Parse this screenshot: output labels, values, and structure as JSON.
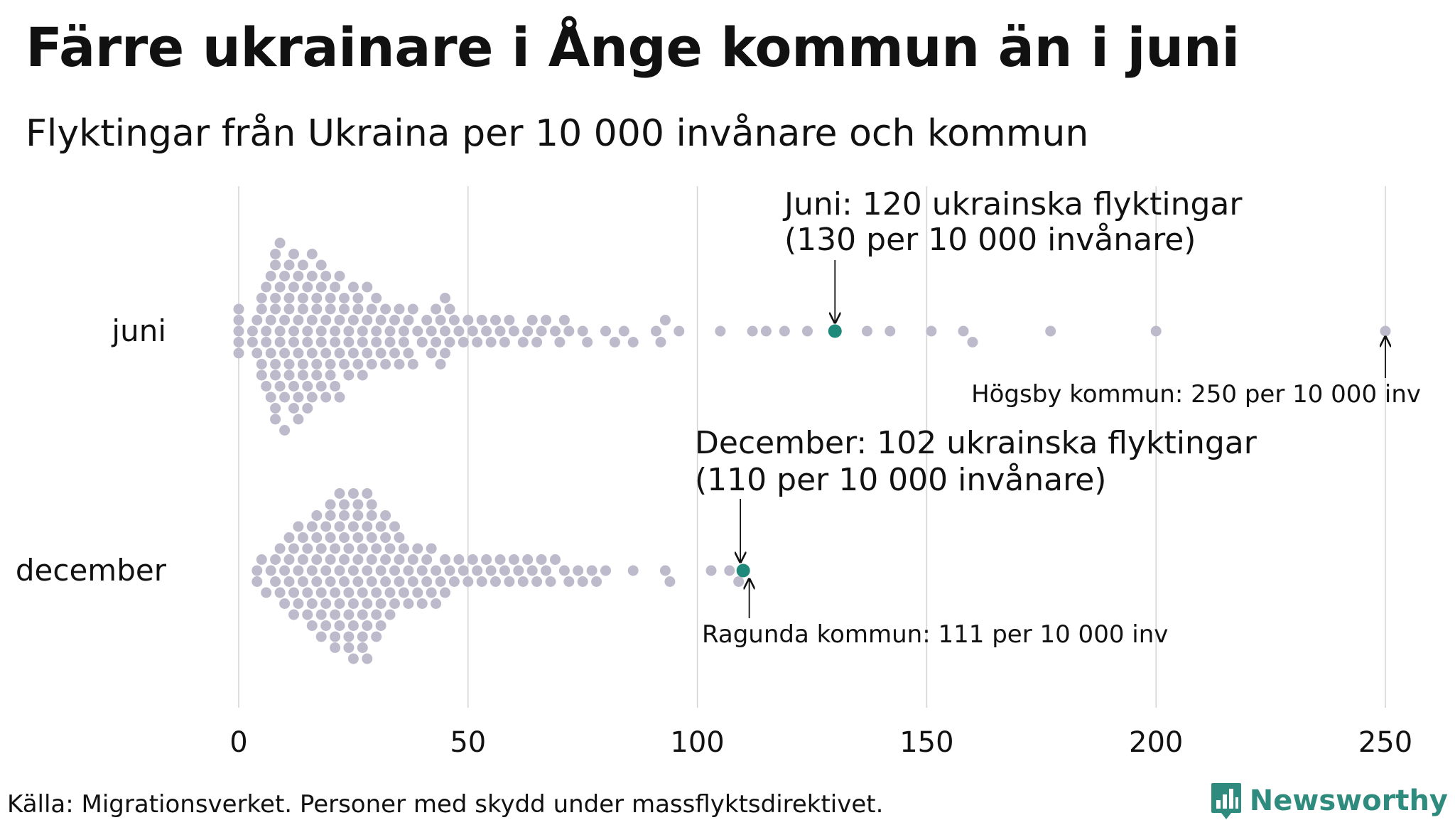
{
  "title": "Färre ukrainare i Ånge kommun än i juni",
  "subtitle": "Flyktingar från Ukraina per 10 000 invånare och kommun",
  "source": "Källa: Migrationsverket. Personer med skydd under massflyktsdirektivet.",
  "brand": {
    "name": "Newsworthy",
    "icon": "bar-chart-speech-bubble-icon",
    "color": "#2e8b7e"
  },
  "chart_data": {
    "type": "scatter",
    "subtype": "beeswarm",
    "xlim": [
      0,
      250
    ],
    "xticks": [
      0,
      50,
      100,
      150,
      200,
      250
    ],
    "grid": true,
    "categories": [
      "juni",
      "december"
    ],
    "colors": {
      "dot": "#bdbacb",
      "highlight": "#1f8a7c",
      "grid": "#d4d4d4"
    },
    "series": [
      {
        "values": [
          0,
          0,
          0,
          0,
          0,
          3,
          3,
          4,
          4,
          5,
          5,
          5,
          5,
          6,
          6,
          6,
          6,
          7,
          7,
          7,
          7,
          8,
          8,
          8,
          8,
          8,
          8,
          8,
          8,
          9,
          9,
          9,
          9,
          9,
          10,
          10,
          10,
          10,
          10,
          11,
          11,
          11,
          11,
          11,
          12,
          12,
          12,
          12,
          12,
          12,
          13,
          13,
          13,
          13,
          13,
          14,
          14,
          14,
          14,
          14,
          15,
          15,
          15,
          15,
          15,
          16,
          16,
          16,
          16,
          16,
          17,
          17,
          17,
          17,
          18,
          18,
          18,
          18,
          18,
          19,
          19,
          19,
          19,
          20,
          20,
          20,
          20,
          21,
          21,
          21,
          21,
          22,
          22,
          22,
          22,
          23,
          23,
          23,
          24,
          24,
          24,
          25,
          25,
          25,
          26,
          26,
          26,
          27,
          27,
          27,
          28,
          28,
          28,
          29,
          29,
          30,
          30,
          30,
          31,
          31,
          32,
          32,
          33,
          33,
          34,
          34,
          35,
          35,
          36,
          36,
          37,
          37,
          38,
          38,
          39,
          40,
          41,
          42,
          42,
          43,
          43,
          44,
          44,
          45,
          45,
          45,
          46,
          46,
          47,
          48,
          49,
          50,
          51,
          52,
          53,
          54,
          55,
          56,
          57,
          58,
          59,
          60,
          62,
          63,
          64,
          65,
          66,
          67,
          69,
          70,
          71,
          72,
          75,
          76,
          80,
          82,
          84,
          86,
          91,
          92,
          93,
          96,
          105,
          112,
          115,
          119,
          124,
          137,
          142,
          151,
          158,
          160,
          177,
          200,
          250
        ],
        "highlight": {
          "value": 130,
          "annotation": "Juni: 120 ukrainska flyktingar\n(130 per 10 000 invånare)"
        },
        "annotations": [
          {
            "value": 250,
            "text": "Högsby kommun: 250 per 10 000 inv"
          }
        ]
      },
      {
        "values": [
          4,
          4,
          5,
          6,
          7,
          8,
          8,
          9,
          9,
          10,
          10,
          11,
          11,
          11,
          12,
          12,
          12,
          13,
          13,
          13,
          14,
          14,
          14,
          15,
          15,
          15,
          16,
          16,
          16,
          16,
          17,
          17,
          17,
          17,
          18,
          18,
          18,
          18,
          19,
          19,
          19,
          19,
          20,
          20,
          20,
          20,
          20,
          21,
          21,
          21,
          21,
          21,
          22,
          22,
          22,
          22,
          22,
          23,
          23,
          23,
          23,
          23,
          24,
          24,
          24,
          24,
          24,
          25,
          25,
          25,
          25,
          25,
          25,
          26,
          26,
          26,
          26,
          26,
          27,
          27,
          27,
          27,
          27,
          28,
          28,
          28,
          28,
          28,
          28,
          29,
          29,
          29,
          29,
          29,
          30,
          30,
          30,
          30,
          31,
          31,
          31,
          31,
          32,
          32,
          32,
          32,
          33,
          33,
          33,
          34,
          34,
          34,
          35,
          35,
          35,
          36,
          36,
          37,
          37,
          38,
          38,
          39,
          39,
          40,
          40,
          41,
          41,
          42,
          42,
          43,
          43,
          44,
          45,
          45,
          46,
          47,
          48,
          49,
          50,
          51,
          52,
          53,
          54,
          55,
          56,
          57,
          58,
          59,
          60,
          61,
          62,
          63,
          64,
          65,
          66,
          67,
          68,
          69,
          71,
          72,
          74,
          75,
          77,
          78,
          80,
          86,
          93,
          94,
          103,
          107,
          109
        ],
        "highlight": {
          "value": 110,
          "annotation": "December: 102 ukrainska flyktingar\n(110 per 10 000 invånare)"
        },
        "annotations": [
          {
            "value": 111,
            "text": "Ragunda kommun: 111 per 10 000 inv"
          }
        ]
      }
    ]
  }
}
